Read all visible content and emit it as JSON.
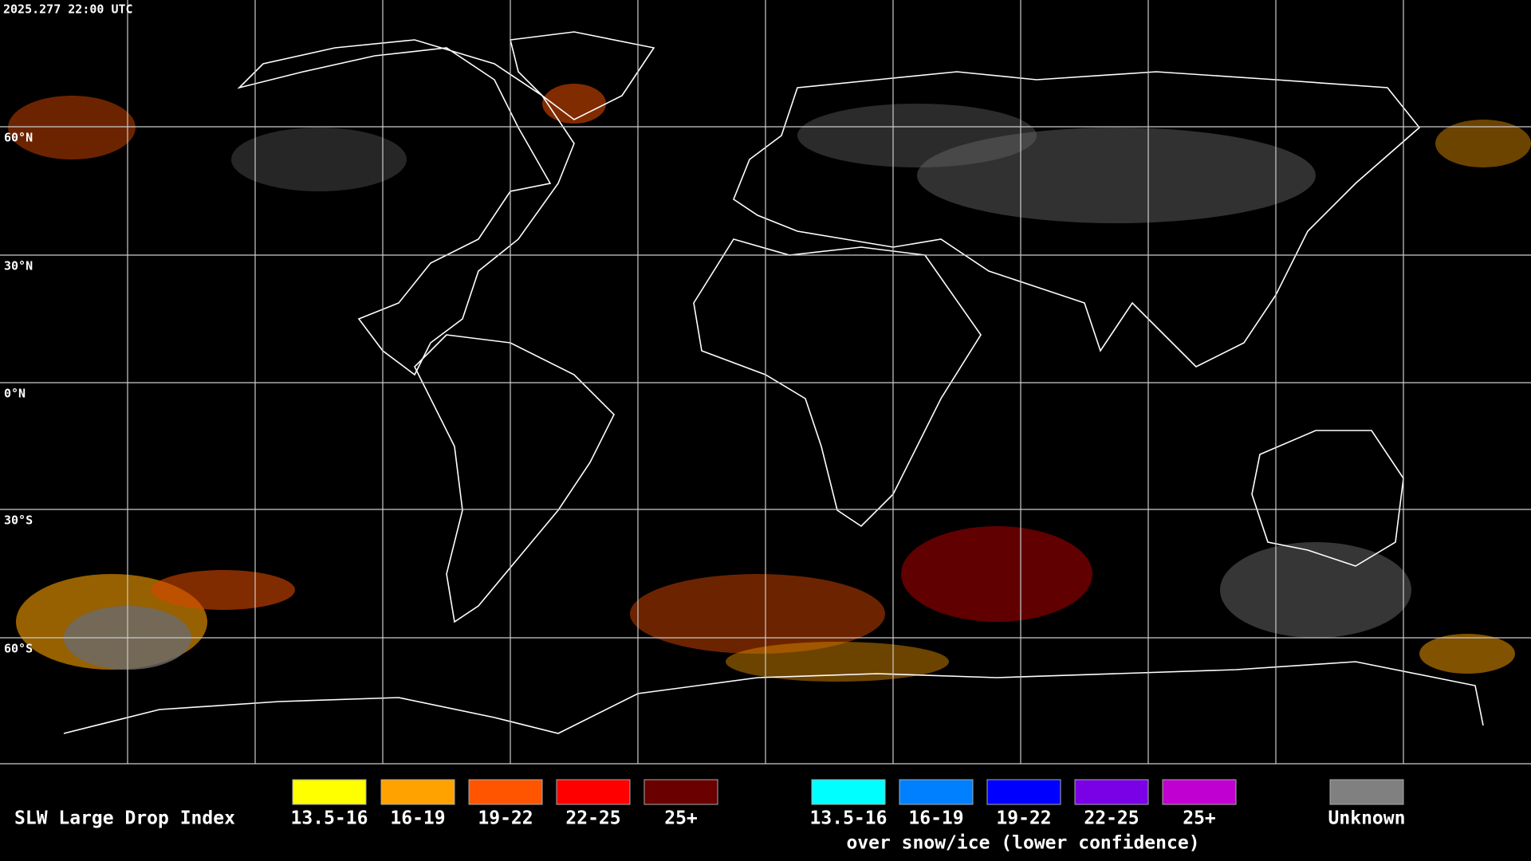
{
  "header": {
    "timestamp": "2025.277 22:00 UTC"
  },
  "map": {
    "latitude_labels": [
      "60°N",
      "30°N",
      "0°N",
      "30°S",
      "60°S"
    ]
  },
  "legend": {
    "title": "SLW Large Drop Index",
    "items": [
      {
        "label": "13.5-16",
        "color": "#ffff00"
      },
      {
        "label": "16-19",
        "color": "#ffa200"
      },
      {
        "label": "19-22",
        "color": "#ff5500"
      },
      {
        "label": "22-25",
        "color": "#ff0000"
      },
      {
        "label": "25+",
        "color": "#6a0000"
      }
    ],
    "snow_items": [
      {
        "label": "13.5-16",
        "color": "#00ffff"
      },
      {
        "label": "16-19",
        "color": "#0080ff"
      },
      {
        "label": "19-22",
        "color": "#0000ff"
      },
      {
        "label": "22-25",
        "color": "#7a00e6"
      },
      {
        "label": "25+",
        "color": "#c000d0"
      }
    ],
    "snow_note": "over snow/ice (lower confidence)",
    "unknown": {
      "label": "Unknown",
      "color": "#808080"
    }
  }
}
